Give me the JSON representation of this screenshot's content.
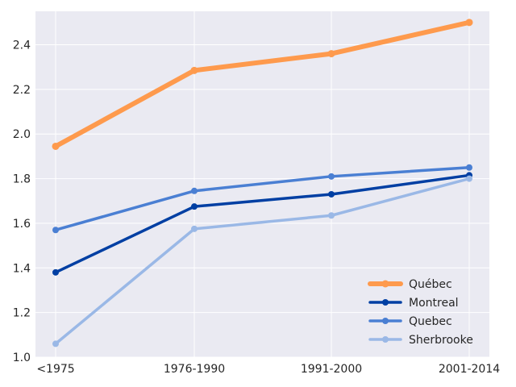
{
  "chart_data": {
    "type": "line",
    "title": "",
    "xlabel": "",
    "ylabel": "",
    "categories": [
      "<1975",
      "1976-1990",
      "1991-2000",
      "2001-2014"
    ],
    "ylim": [
      1.0,
      2.55
    ],
    "yticks": [
      1.0,
      1.2,
      1.4,
      1.6,
      1.8,
      2.0,
      2.2,
      2.4
    ],
    "ytick_labels": [
      "1.0",
      "1.2",
      "1.4",
      "1.6",
      "1.8",
      "2.0",
      "2.2",
      "2.4"
    ],
    "grid": true,
    "legend_position": "lower-right",
    "background": "#eaeaf2",
    "series": [
      {
        "name": "Québec",
        "values": [
          1.945,
          2.285,
          2.36,
          2.5
        ],
        "color": "#fe9a4d",
        "emphasis": "thick"
      },
      {
        "name": "Montreal",
        "values": [
          1.38,
          1.675,
          1.73,
          1.815
        ],
        "color": "#003fa3",
        "emphasis": "normal"
      },
      {
        "name": "Quebec",
        "values": [
          1.57,
          1.745,
          1.81,
          1.85
        ],
        "color": "#4a7fd3",
        "emphasis": "normal"
      },
      {
        "name": "Sherbrooke",
        "values": [
          1.06,
          1.575,
          1.635,
          1.8
        ],
        "color": "#9ab8e6",
        "emphasis": "normal"
      }
    ]
  }
}
